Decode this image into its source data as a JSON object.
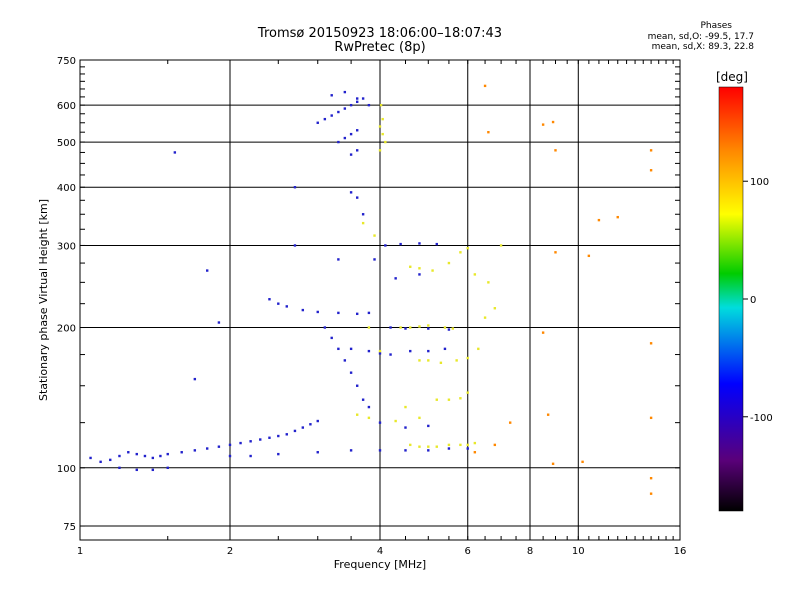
{
  "title_line1": "Tromsø 20150923 18:06:00–18:07:43",
  "title_line2": "RwPretec (8p)",
  "stats": {
    "heading": "Phases",
    "line_o": "mean, sd,O:  -99.5, 17.7",
    "line_x": "mean, sd,X:  89.3, 22.8"
  },
  "chart_data": {
    "type": "scatter",
    "xlabel": "Frequency [MHz]",
    "ylabel": "Stationary phase Virtual Height [km]",
    "x_scale": "log",
    "y_scale": "log",
    "xlim": [
      1,
      16
    ],
    "ylim": [
      70,
      750
    ],
    "x_ticks": [
      1,
      2,
      4,
      6,
      8,
      10,
      16
    ],
    "x_tick_labels": [
      "1",
      "2",
      "4",
      "6",
      "8",
      "10",
      "16"
    ],
    "y_ticks": [
      75,
      100,
      200,
      300,
      400,
      500,
      600,
      750
    ],
    "y_tick_labels": [
      "75",
      "100",
      "200",
      "300",
      "400",
      "500",
      "600",
      "750"
    ],
    "grid": true,
    "colorbar": {
      "label": "[deg]",
      "range": [
        -180,
        180
      ],
      "tick_values": [
        -100,
        0,
        100
      ],
      "tick_labels": [
        "-100",
        "0",
        "100"
      ]
    },
    "series": [
      {
        "role": "O-mode traces (blue/purple)",
        "color": "#2222cc",
        "points": [
          [
            1.05,
            105
          ],
          [
            1.1,
            103
          ],
          [
            1.15,
            104
          ],
          [
            1.2,
            106
          ],
          [
            1.25,
            108
          ],
          [
            1.3,
            107
          ],
          [
            1.35,
            106
          ],
          [
            1.4,
            105
          ],
          [
            1.45,
            106
          ],
          [
            1.5,
            107
          ],
          [
            1.6,
            108
          ],
          [
            1.7,
            109
          ],
          [
            1.8,
            110
          ],
          [
            1.9,
            111
          ],
          [
            2.0,
            112
          ],
          [
            2.1,
            113
          ],
          [
            2.2,
            114
          ],
          [
            2.3,
            115
          ],
          [
            2.4,
            116
          ],
          [
            2.5,
            117
          ],
          [
            2.6,
            118
          ],
          [
            2.7,
            120
          ],
          [
            2.8,
            122
          ],
          [
            2.9,
            124
          ],
          [
            3.0,
            126
          ],
          [
            1.2,
            100
          ],
          [
            1.3,
            99
          ],
          [
            1.4,
            99
          ],
          [
            1.5,
            100
          ],
          [
            2.0,
            106
          ],
          [
            2.2,
            106
          ],
          [
            2.5,
            107
          ],
          [
            3.0,
            108
          ],
          [
            3.5,
            109
          ],
          [
            4.0,
            109
          ],
          [
            4.5,
            109
          ],
          [
            5.0,
            109
          ],
          [
            5.5,
            110
          ],
          [
            6.0,
            110
          ],
          [
            2.4,
            230
          ],
          [
            2.5,
            225
          ],
          [
            2.6,
            222
          ],
          [
            2.8,
            218
          ],
          [
            3.0,
            216
          ],
          [
            3.3,
            215
          ],
          [
            3.6,
            214
          ],
          [
            3.8,
            215
          ],
          [
            4.2,
            200
          ],
          [
            4.5,
            199
          ],
          [
            5.0,
            199
          ],
          [
            5.5,
            198
          ],
          [
            3.5,
            180
          ],
          [
            3.8,
            178
          ],
          [
            4.0,
            176
          ],
          [
            4.2,
            175
          ],
          [
            4.6,
            178
          ],
          [
            5.0,
            178
          ],
          [
            5.4,
            180
          ],
          [
            3.1,
            200
          ],
          [
            3.2,
            190
          ],
          [
            3.3,
            180
          ],
          [
            3.4,
            170
          ],
          [
            3.5,
            160
          ],
          [
            3.6,
            150
          ],
          [
            3.7,
            140
          ],
          [
            3.8,
            135
          ],
          [
            4.1,
            300
          ],
          [
            4.4,
            302
          ],
          [
            4.8,
            303
          ],
          [
            5.2,
            302
          ],
          [
            3.0,
            550
          ],
          [
            3.1,
            560
          ],
          [
            3.2,
            570
          ],
          [
            3.3,
            580
          ],
          [
            3.4,
            590
          ],
          [
            3.5,
            600
          ],
          [
            3.6,
            610
          ],
          [
            3.7,
            620
          ],
          [
            3.3,
            500
          ],
          [
            3.4,
            510
          ],
          [
            3.5,
            520
          ],
          [
            3.6,
            530
          ],
          [
            3.5,
            470
          ],
          [
            3.6,
            480
          ],
          [
            3.2,
            630
          ],
          [
            3.4,
            640
          ],
          [
            3.6,
            620
          ],
          [
            3.8,
            600
          ],
          [
            1.55,
            475
          ],
          [
            2.7,
            400
          ],
          [
            3.5,
            390
          ],
          [
            3.6,
            380
          ],
          [
            3.7,
            350
          ],
          [
            1.7,
            155
          ],
          [
            1.9,
            205
          ],
          [
            1.8,
            265
          ],
          [
            2.7,
            300
          ],
          [
            3.3,
            280
          ],
          [
            4.0,
            125
          ],
          [
            4.5,
            122
          ],
          [
            5.0,
            123
          ],
          [
            3.9,
            280
          ],
          [
            4.3,
            255
          ],
          [
            4.8,
            260
          ]
        ]
      },
      {
        "role": "X-mode traces (green/yellow)",
        "color": "#e8e82a",
        "points": [
          [
            4.0,
            540
          ],
          [
            4.05,
            520
          ],
          [
            4.1,
            500
          ],
          [
            4.0,
            480
          ],
          [
            4.05,
            560
          ],
          [
            4.02,
            600
          ],
          [
            4.6,
            112
          ],
          [
            4.8,
            111
          ],
          [
            5.0,
            111
          ],
          [
            5.2,
            111
          ],
          [
            5.5,
            112
          ],
          [
            5.8,
            112
          ],
          [
            6.0,
            112
          ],
          [
            6.2,
            113
          ],
          [
            4.4,
            200
          ],
          [
            4.6,
            200
          ],
          [
            4.8,
            201
          ],
          [
            5.0,
            202
          ],
          [
            5.4,
            200
          ],
          [
            5.6,
            199
          ],
          [
            4.8,
            170
          ],
          [
            5.0,
            170
          ],
          [
            5.3,
            168
          ],
          [
            5.7,
            170
          ],
          [
            6.0,
            172
          ],
          [
            5.2,
            140
          ],
          [
            5.5,
            140
          ],
          [
            5.8,
            141
          ],
          [
            6.0,
            145
          ],
          [
            4.6,
            270
          ],
          [
            4.8,
            268
          ],
          [
            5.1,
            265
          ],
          [
            5.5,
            275
          ],
          [
            5.8,
            290
          ],
          [
            6.0,
            296
          ],
          [
            3.6,
            130
          ],
          [
            3.8,
            128
          ],
          [
            4.3,
            126
          ],
          [
            4.5,
            135
          ],
          [
            4.8,
            128
          ],
          [
            3.8,
            200
          ],
          [
            4.0,
            178
          ],
          [
            6.3,
            180
          ],
          [
            6.5,
            210
          ],
          [
            6.8,
            220
          ],
          [
            6.2,
            260
          ],
          [
            6.6,
            250
          ],
          [
            3.7,
            335
          ],
          [
            3.9,
            315
          ],
          [
            7.0,
            300
          ]
        ]
      },
      {
        "role": "sparse high-frequency points",
        "color": "#ff8800",
        "points": [
          [
            6.5,
            660
          ],
          [
            6.6,
            525
          ],
          [
            8.5,
            545
          ],
          [
            8.9,
            552
          ],
          [
            9.0,
            480
          ],
          [
            14.0,
            480
          ],
          [
            14.0,
            435
          ],
          [
            11.0,
            340
          ],
          [
            12.0,
            345
          ],
          [
            9.0,
            290
          ],
          [
            10.5,
            285
          ],
          [
            8.5,
            195
          ],
          [
            14.0,
            185
          ],
          [
            8.7,
            130
          ],
          [
            14.0,
            128
          ],
          [
            8.9,
            102
          ],
          [
            10.2,
            103
          ],
          [
            14.0,
            95
          ],
          [
            14.0,
            88
          ],
          [
            6.2,
            108
          ],
          [
            6.8,
            112
          ],
          [
            7.3,
            125
          ]
        ]
      }
    ]
  }
}
